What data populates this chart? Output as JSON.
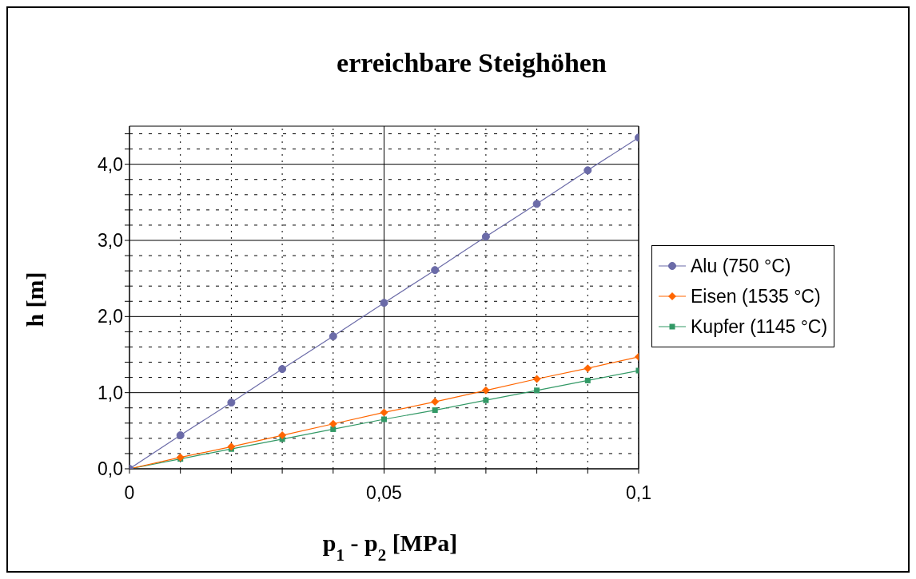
{
  "chart_data": {
    "type": "line",
    "title": "erreichbare Steighöhen",
    "xlabel": "p$_{1}$ - p$_{2}$ [MPa]",
    "ylabel": "h [m]",
    "x": [
      0,
      0.01,
      0.02,
      0.03,
      0.04,
      0.05,
      0.06,
      0.07,
      0.08,
      0.09,
      0.1
    ],
    "series": [
      {
        "name": "Alu (750 °C)",
        "color": "#6b6ba8",
        "marker": "circle",
        "values": [
          0,
          0.44,
          0.87,
          1.31,
          1.74,
          2.18,
          2.61,
          3.05,
          3.48,
          3.92,
          4.35
        ]
      },
      {
        "name": "Eisen (1535 °C)",
        "color": "#ff6600",
        "marker": "diamond",
        "values": [
          0,
          0.15,
          0.29,
          0.44,
          0.59,
          0.74,
          0.88,
          1.03,
          1.18,
          1.32,
          1.47
        ]
      },
      {
        "name": "Kupfer (1145 °C)",
        "color": "#339966",
        "marker": "square",
        "values": [
          0,
          0.13,
          0.26,
          0.39,
          0.52,
          0.65,
          0.77,
          0.9,
          1.03,
          1.16,
          1.29
        ]
      }
    ],
    "xlim": [
      0,
      0.1
    ],
    "xticks": [
      {
        "value": 0,
        "label": "0"
      },
      {
        "value": 0.01,
        "label": null
      },
      {
        "value": 0.02,
        "label": null
      },
      {
        "value": 0.03,
        "label": null
      },
      {
        "value": 0.04,
        "label": null
      },
      {
        "value": 0.05,
        "label": "0,05"
      },
      {
        "value": 0.06,
        "label": null
      },
      {
        "value": 0.07,
        "label": null
      },
      {
        "value": 0.08,
        "label": null
      },
      {
        "value": 0.09,
        "label": null
      },
      {
        "value": 0.1,
        "label": "0,1"
      }
    ],
    "ylim": [
      0,
      4.5
    ],
    "yticks": [
      {
        "value": 0,
        "label": "0,0"
      },
      {
        "value": 0.2,
        "label": null
      },
      {
        "value": 0.4,
        "label": null
      },
      {
        "value": 0.6,
        "label": null
      },
      {
        "value": 0.8,
        "label": null
      },
      {
        "value": 1,
        "label": "1,0"
      },
      {
        "value": 1.2,
        "label": null
      },
      {
        "value": 1.4,
        "label": null
      },
      {
        "value": 1.6,
        "label": null
      },
      {
        "value": 1.8,
        "label": null
      },
      {
        "value": 2,
        "label": "2,0"
      },
      {
        "value": 2.2,
        "label": null
      },
      {
        "value": 2.4,
        "label": null
      },
      {
        "value": 2.6,
        "label": null
      },
      {
        "value": 2.8,
        "label": null
      },
      {
        "value": 3,
        "label": "3,0"
      },
      {
        "value": 3.2,
        "label": null
      },
      {
        "value": 3.4,
        "label": null
      },
      {
        "value": 3.6,
        "label": null
      },
      {
        "value": 3.8,
        "label": null
      },
      {
        "value": 4,
        "label": "4,0"
      },
      {
        "value": 4.2,
        "label": null
      },
      {
        "value": 4.4,
        "label": null
      }
    ],
    "grid": true,
    "legend": "right"
  }
}
